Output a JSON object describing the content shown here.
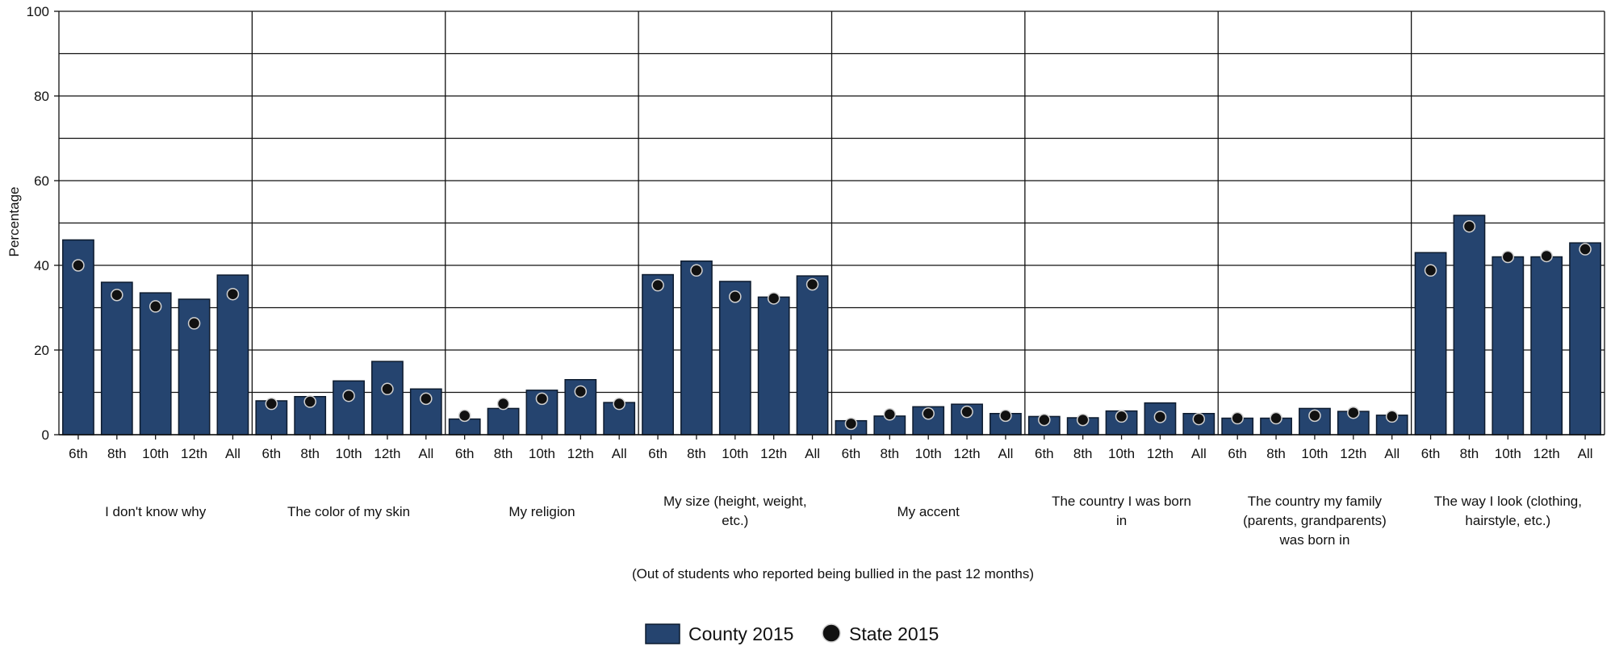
{
  "chart_data": {
    "type": "bar",
    "ylabel": "Percentage",
    "xlabel": "(Out of students who reported being bullied in the past 12 months)",
    "ylim": [
      0,
      100
    ],
    "yticks": [
      0,
      20,
      40,
      60,
      80,
      100
    ],
    "grid": true,
    "legend_position": "bottom-center",
    "colors": {
      "bar": "#25446f",
      "bar_edge": "#0d1b2e",
      "dot": "#111111",
      "dot_edge": "#d0d0d0"
    },
    "grades": [
      "6th",
      "8th",
      "10th",
      "12th",
      "All"
    ],
    "categories": [
      {
        "label": [
          "I don't know why"
        ]
      },
      {
        "label": [
          "The color of my skin"
        ]
      },
      {
        "label": [
          "My religion"
        ]
      },
      {
        "label": [
          "My size (height, weight,",
          "etc.)"
        ]
      },
      {
        "label": [
          "My accent"
        ]
      },
      {
        "label": [
          "The country I was born",
          "in"
        ]
      },
      {
        "label": [
          "The country my family",
          "(parents, grandparents)",
          "was born in"
        ]
      },
      {
        "label": [
          "The way I look (clothing,",
          "hairstyle, etc.)"
        ]
      }
    ],
    "series": [
      {
        "name": "County 2015",
        "kind": "bar",
        "values": [
          [
            46,
            36,
            33.5,
            32,
            37.7
          ],
          [
            8,
            9,
            12.7,
            17.3,
            10.8
          ],
          [
            3.7,
            6.2,
            10.5,
            13,
            7.6
          ],
          [
            37.8,
            41,
            36.2,
            32.5,
            37.5
          ],
          [
            3.3,
            4.4,
            6.6,
            7.2,
            5
          ],
          [
            4.3,
            4,
            5.6,
            7.5,
            5
          ],
          [
            3.9,
            3.9,
            6.2,
            5.5,
            4.6
          ],
          [
            43,
            51.8,
            42,
            42,
            45.3
          ]
        ]
      },
      {
        "name": "State 2015",
        "kind": "dot",
        "values": [
          [
            40,
            33,
            30.3,
            26.3,
            33.2
          ],
          [
            7.3,
            7.8,
            9.2,
            10.8,
            8.5
          ],
          [
            4.5,
            7.3,
            8.5,
            10.2,
            7.3
          ],
          [
            35.3,
            38.8,
            32.6,
            32.2,
            35.5
          ],
          [
            2.6,
            4.8,
            5,
            5.4,
            4.5
          ],
          [
            3.5,
            3.5,
            4.3,
            4.2,
            3.7
          ],
          [
            3.9,
            3.9,
            4.5,
            5.2,
            4.3
          ],
          [
            38.8,
            49.2,
            42,
            42.2,
            43.8
          ]
        ]
      }
    ]
  }
}
